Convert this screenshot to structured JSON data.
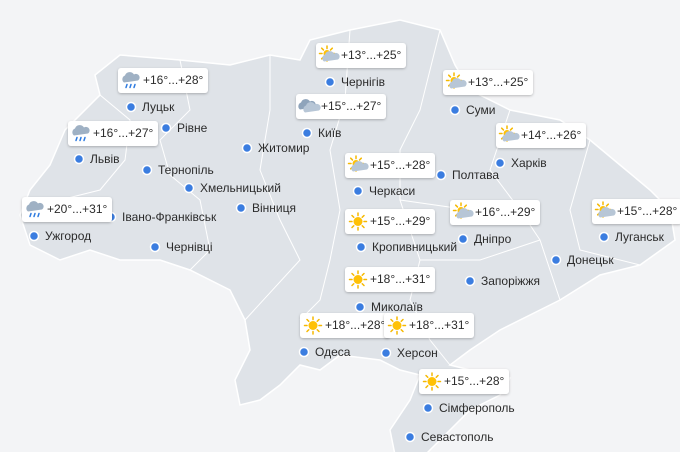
{
  "cities": [
    {
      "name": "Луцьк",
      "weather": {
        "temp": "+16°...+28°",
        "icon": "rain"
      }
    },
    {
      "name": "Рівне"
    },
    {
      "name": "Львів",
      "weather": {
        "temp": "+16°...+27°",
        "icon": "rain"
      }
    },
    {
      "name": "Тернопіль"
    },
    {
      "name": "Хмельницький"
    },
    {
      "name": "Житомир"
    },
    {
      "name": "Київ",
      "weather": {
        "temp": "+15°...+27°",
        "icon": "cloudy"
      }
    },
    {
      "name": "Чернігів",
      "weather": {
        "temp": "+13°...+25°",
        "icon": "partly"
      }
    },
    {
      "name": "Суми",
      "weather": {
        "temp": "+13°...+25°",
        "icon": "partly"
      }
    },
    {
      "name": "Харків",
      "weather": {
        "temp": "+14°...+26°",
        "icon": "partly"
      }
    },
    {
      "name": "Полтава"
    },
    {
      "name": "Черкаси",
      "weather": {
        "temp": "+15°...+28°",
        "icon": "partly"
      }
    },
    {
      "name": "Вінниця"
    },
    {
      "name": "Івано-Франківськ"
    },
    {
      "name": "Ужгород",
      "weather": {
        "temp": "+20°...+31°",
        "icon": "rain"
      }
    },
    {
      "name": "Чернівці"
    },
    {
      "name": "Кропивницький",
      "weather": {
        "temp": "+15°...+29°",
        "icon": "sun"
      }
    },
    {
      "name": "Дніпро",
      "weather": {
        "temp": "+16°...+29°",
        "icon": "partly"
      }
    },
    {
      "name": "Луганськ",
      "weather": {
        "temp": "+15°...+28°",
        "icon": "partly"
      }
    },
    {
      "name": "Донецьк"
    },
    {
      "name": "Запоріжжя"
    },
    {
      "name": "Миколаїв",
      "weather": {
        "temp": "+18°...+31°",
        "icon": "sun"
      }
    },
    {
      "name": "Одеса",
      "weather": {
        "temp": "+18°...+28°",
        "icon": "sun"
      }
    },
    {
      "name": "Херсон",
      "weather": {
        "temp": "+18°...+31°",
        "icon": "sun"
      }
    },
    {
      "name": "Сімферополь",
      "weather": {
        "temp": "+15°...+28°",
        "icon": "sun"
      }
    },
    {
      "name": "Севастополь"
    }
  ]
}
